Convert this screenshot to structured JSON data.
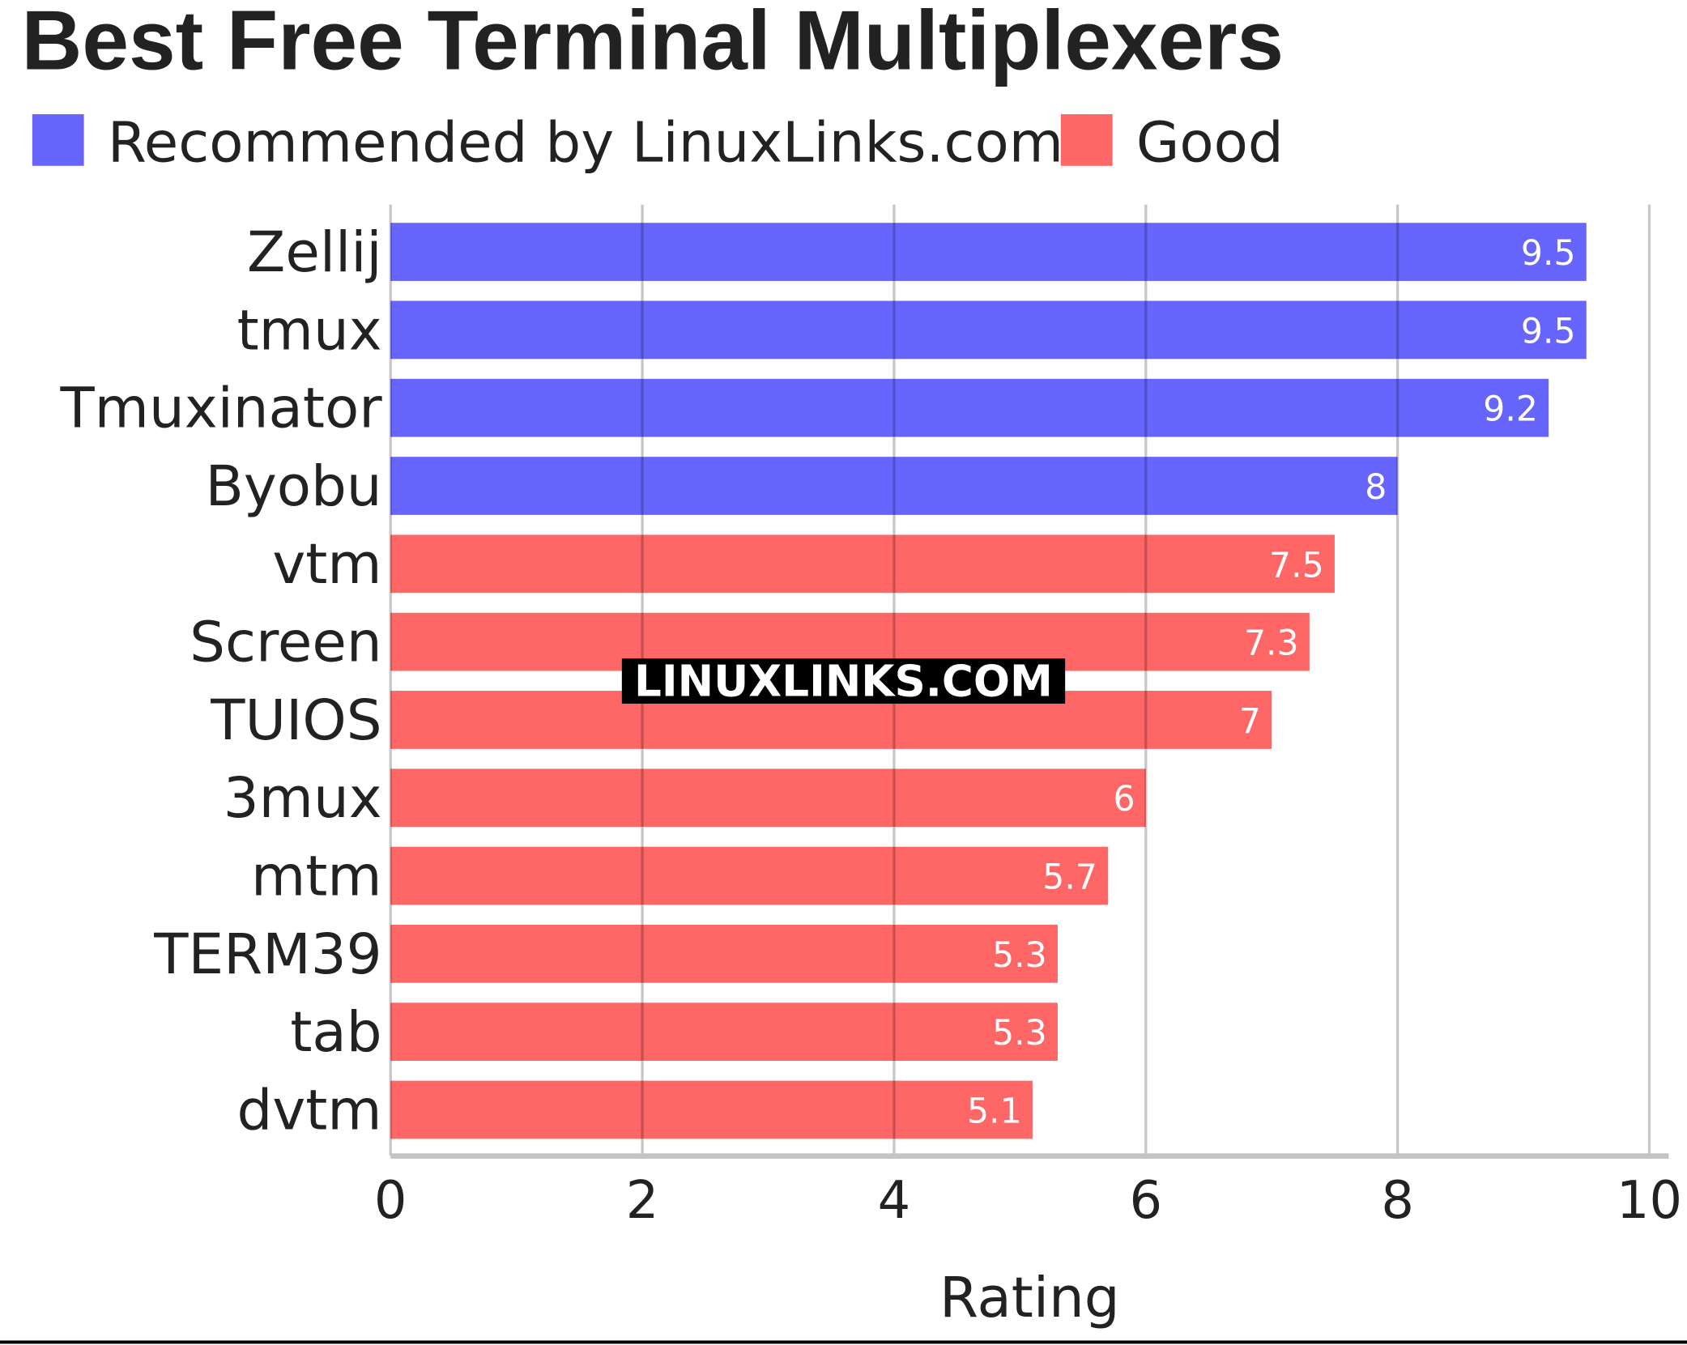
{
  "chart_data": {
    "type": "bar",
    "orientation": "horizontal",
    "title": "Best Free Terminal Multiplexers",
    "xlabel": "Rating",
    "ylabel": "",
    "xlim": [
      0,
      10
    ],
    "xticks": [
      "0",
      "2",
      "4",
      "6",
      "8",
      "10"
    ],
    "grid": true,
    "legend_placement": "top-left",
    "watermark": "LINUXLINKS.COM",
    "series": [
      {
        "name": "Recommended by LinuxLinks.com",
        "color": "#6666ff"
      },
      {
        "name": "Good",
        "color": "#ff6666"
      }
    ],
    "categories": [
      "Zellij",
      "tmux",
      "Tmuxinator",
      "Byobu",
      "vtm",
      "Screen",
      "TUIOS",
      "3mux",
      "mtm",
      "TERM39",
      "tab",
      "dvtm"
    ],
    "values": [
      9.5,
      9.5,
      9.2,
      8,
      7.5,
      7.3,
      7,
      6,
      5.7,
      5.3,
      5.3,
      5.1
    ],
    "value_labels": [
      "9.5",
      "9.5",
      "9.2",
      "8",
      "7.5",
      "7.3",
      "7",
      "6",
      "5.7",
      "5.3",
      "5.3",
      "5.1"
    ],
    "groups": [
      0,
      0,
      0,
      0,
      1,
      1,
      1,
      1,
      1,
      1,
      1,
      1
    ]
  }
}
